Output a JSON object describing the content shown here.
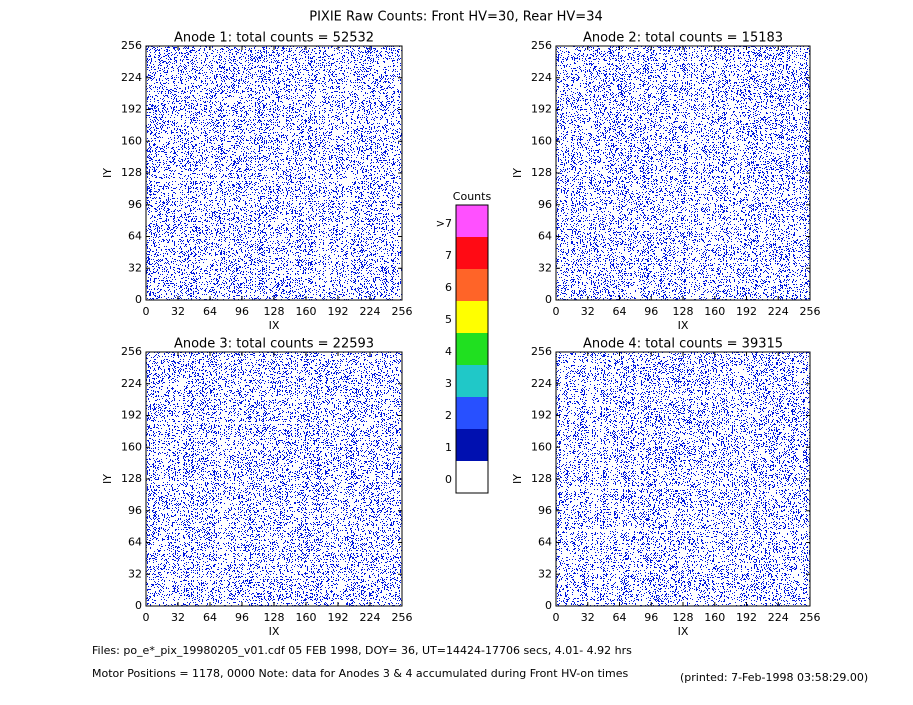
{
  "title": "PIXIE Raw Counts:  Front HV=30, Rear HV=34",
  "footer": {
    "files": "Files: po_e*_pix_19980205_v01.cdf    05 FEB 1998, DOY= 36, UT=14424-17706 secs,  4.01- 4.92 hrs",
    "motor": "Motor Positions = 1178, 0000   Note: data for Anodes 3 & 4 accumulated during Front HV-on times",
    "printed": "(printed:  7-Feb-1998 03:58:29.00)"
  },
  "chart_data": [
    {
      "type": "heatmap",
      "title": "Anode 1: total counts = 52532",
      "xlabel": "IX",
      "ylabel": "IY",
      "xlim": [
        0,
        256
      ],
      "ylim": [
        0,
        256
      ],
      "xticks": [
        0,
        32,
        64,
        96,
        128,
        160,
        192,
        224,
        256
      ],
      "yticks": [
        0,
        32,
        64,
        96,
        128,
        160,
        192,
        224,
        256
      ],
      "color": "#0018e0"
    },
    {
      "type": "heatmap",
      "title": "Anode 2: total counts = 15183",
      "xlabel": "IX",
      "ylabel": "IY",
      "xlim": [
        0,
        256
      ],
      "ylim": [
        0,
        256
      ],
      "xticks": [
        0,
        32,
        64,
        96,
        128,
        160,
        192,
        224,
        256
      ],
      "yticks": [
        0,
        32,
        64,
        96,
        128,
        160,
        192,
        224,
        256
      ],
      "color": "#0018e0"
    },
    {
      "type": "heatmap",
      "title": "Anode 3: total counts = 22593",
      "xlabel": "IX",
      "ylabel": "IY",
      "xlim": [
        0,
        256
      ],
      "ylim": [
        0,
        256
      ],
      "xticks": [
        0,
        32,
        64,
        96,
        128,
        160,
        192,
        224,
        256
      ],
      "yticks": [
        0,
        32,
        64,
        96,
        128,
        160,
        192,
        224,
        256
      ],
      "color": "#0018e0"
    },
    {
      "type": "heatmap",
      "title": "Anode 4: total counts = 39315",
      "xlabel": "IX",
      "ylabel": "IY",
      "xlim": [
        0,
        256
      ],
      "ylim": [
        0,
        256
      ],
      "xticks": [
        0,
        32,
        64,
        96,
        128,
        160,
        192,
        224,
        256
      ],
      "yticks": [
        0,
        32,
        64,
        96,
        128,
        160,
        192,
        224,
        256
      ],
      "color": "#0018e0"
    },
    {
      "type": "colorbar",
      "title": "Counts",
      "categories": [
        "0",
        "1",
        "2",
        "3",
        "4",
        "5",
        "6",
        "7",
        ">7"
      ],
      "colors": [
        "#ffffff",
        "#0010b0",
        "#2850ff",
        "#20c8c8",
        "#20e020",
        "#ffff00",
        "#ff6428",
        "#ff0a14",
        "#ff50ff"
      ]
    }
  ]
}
